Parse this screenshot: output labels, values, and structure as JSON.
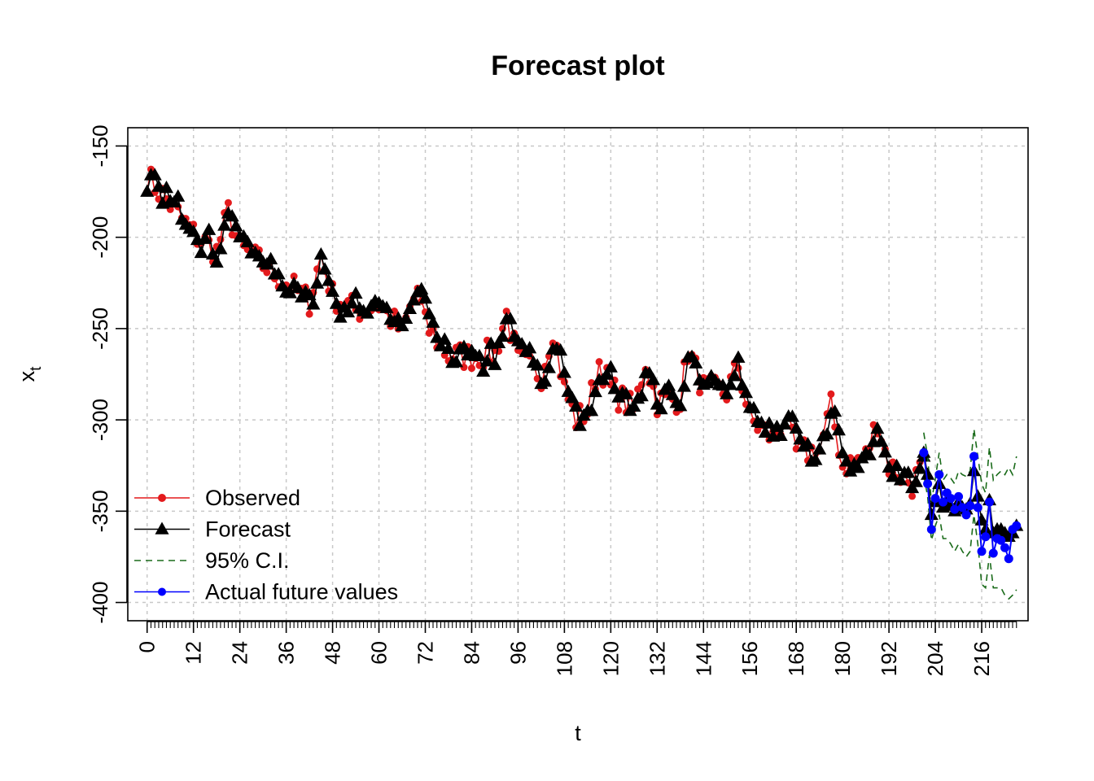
{
  "chart_data": {
    "type": "line",
    "title": "Forecast plot",
    "xlabel": "t",
    "ylabel_main": "x",
    "ylabel_sub": "t",
    "xlim": [
      -5,
      228
    ],
    "ylim": [
      -410,
      -140
    ],
    "x_ticks": [
      0,
      12,
      24,
      36,
      48,
      60,
      72,
      84,
      96,
      108,
      120,
      132,
      144,
      156,
      168,
      180,
      192,
      204,
      216
    ],
    "y_ticks": [
      -150,
      -200,
      -250,
      -300,
      -350,
      -400
    ],
    "grid": true,
    "legend_position": "bottom-left",
    "colors": {
      "observed": "#e31a1c",
      "forecast": "#000000",
      "ci": "#1a6b1a",
      "actual": "#0000ff"
    },
    "observed_anchors": [
      [
        0,
        -167
      ],
      [
        6,
        -182
      ],
      [
        12,
        -198
      ],
      [
        18,
        -208
      ],
      [
        21,
        -186
      ],
      [
        24,
        -206
      ],
      [
        30,
        -215
      ],
      [
        36,
        -225
      ],
      [
        42,
        -235
      ],
      [
        45,
        -210
      ],
      [
        48,
        -232
      ],
      [
        54,
        -240
      ],
      [
        60,
        -237
      ],
      [
        66,
        -252
      ],
      [
        70,
        -228
      ],
      [
        72,
        -248
      ],
      [
        78,
        -265
      ],
      [
        84,
        -265
      ],
      [
        90,
        -264
      ],
      [
        93,
        -242
      ],
      [
        96,
        -268
      ],
      [
        102,
        -275
      ],
      [
        105,
        -250
      ],
      [
        108,
        -283
      ],
      [
        111,
        -300
      ],
      [
        114,
        -295
      ],
      [
        117,
        -268
      ],
      [
        120,
        -283
      ],
      [
        126,
        -295
      ],
      [
        129,
        -268
      ],
      [
        132,
        -290
      ],
      [
        138,
        -288
      ],
      [
        140,
        -262
      ],
      [
        144,
        -283
      ],
      [
        150,
        -285
      ],
      [
        153,
        -270
      ],
      [
        156,
        -300
      ],
      [
        162,
        -310
      ],
      [
        165,
        -300
      ],
      [
        168,
        -318
      ],
      [
        174,
        -317
      ],
      [
        177,
        -293
      ],
      [
        180,
        -325
      ],
      [
        186,
        -320
      ],
      [
        189,
        -300
      ],
      [
        192,
        -325
      ],
      [
        198,
        -335
      ],
      [
        201,
        -325
      ]
    ],
    "actual_future": [
      [
        201,
        -318
      ],
      [
        202,
        -335
      ],
      [
        203,
        -360
      ],
      [
        204,
        -343
      ],
      [
        205,
        -330
      ],
      [
        206,
        -345
      ],
      [
        207,
        -340
      ],
      [
        208,
        -343
      ],
      [
        209,
        -349
      ],
      [
        210,
        -342
      ],
      [
        211,
        -348
      ],
      [
        212,
        -352
      ],
      [
        213,
        -347
      ],
      [
        214,
        -320
      ],
      [
        215,
        -348
      ],
      [
        216,
        -372
      ],
      [
        217,
        -364
      ],
      [
        218,
        -345
      ],
      [
        219,
        -373
      ],
      [
        220,
        -365
      ],
      [
        221,
        -366
      ],
      [
        222,
        -370
      ],
      [
        223,
        -376
      ],
      [
        224,
        -360
      ],
      [
        225,
        -358
      ]
    ],
    "forecast_future": [
      [
        201,
        -318
      ],
      [
        202,
        -330
      ],
      [
        203,
        -352
      ],
      [
        204,
        -345
      ],
      [
        205,
        -335
      ],
      [
        206,
        -348
      ],
      [
        207,
        -345
      ],
      [
        208,
        -347
      ],
      [
        209,
        -350
      ],
      [
        210,
        -345
      ],
      [
        211,
        -348
      ],
      [
        212,
        -349
      ],
      [
        213,
        -346
      ],
      [
        214,
        -328
      ],
      [
        215,
        -342
      ],
      [
        216,
        -355
      ],
      [
        217,
        -360
      ],
      [
        218,
        -344
      ],
      [
        219,
        -362
      ],
      [
        220,
        -360
      ],
      [
        221,
        -360
      ],
      [
        222,
        -362
      ],
      [
        223,
        -364
      ],
      [
        224,
        -362
      ],
      [
        225,
        -358
      ]
    ],
    "ci_upper": [
      [
        201,
        -307
      ],
      [
        202,
        -320
      ],
      [
        203,
        -345
      ],
      [
        204,
        -332
      ],
      [
        205,
        -318
      ],
      [
        206,
        -333
      ],
      [
        207,
        -330
      ],
      [
        208,
        -332
      ],
      [
        209,
        -335
      ],
      [
        210,
        -328
      ],
      [
        211,
        -330
      ],
      [
        212,
        -331
      ],
      [
        213,
        -328
      ],
      [
        214,
        -305
      ],
      [
        215,
        -320
      ],
      [
        216,
        -335
      ],
      [
        217,
        -340
      ],
      [
        218,
        -315
      ],
      [
        219,
        -333
      ],
      [
        220,
        -330
      ],
      [
        221,
        -328
      ],
      [
        222,
        -330
      ],
      [
        223,
        -326
      ],
      [
        224,
        -330
      ],
      [
        225,
        -320
      ]
    ],
    "ci_lower": [
      [
        201,
        -330
      ],
      [
        202,
        -342
      ],
      [
        203,
        -366
      ],
      [
        204,
        -358
      ],
      [
        205,
        -352
      ],
      [
        206,
        -365
      ],
      [
        207,
        -365
      ],
      [
        208,
        -368
      ],
      [
        209,
        -372
      ],
      [
        210,
        -368
      ],
      [
        211,
        -372
      ],
      [
        212,
        -375
      ],
      [
        213,
        -372
      ],
      [
        214,
        -352
      ],
      [
        215,
        -368
      ],
      [
        216,
        -390
      ],
      [
        217,
        -392
      ],
      [
        218,
        -374
      ],
      [
        219,
        -392
      ],
      [
        220,
        -392
      ],
      [
        221,
        -392
      ],
      [
        222,
        -396
      ],
      [
        223,
        -398
      ],
      [
        224,
        -396
      ],
      [
        225,
        -393
      ]
    ],
    "legend": [
      {
        "label": "Observed",
        "kind": "observed"
      },
      {
        "label": "Forecast",
        "kind": "forecast"
      },
      {
        "label": "95% C.I.",
        "kind": "ci"
      },
      {
        "label": "Actual future values",
        "kind": "actual"
      }
    ]
  }
}
